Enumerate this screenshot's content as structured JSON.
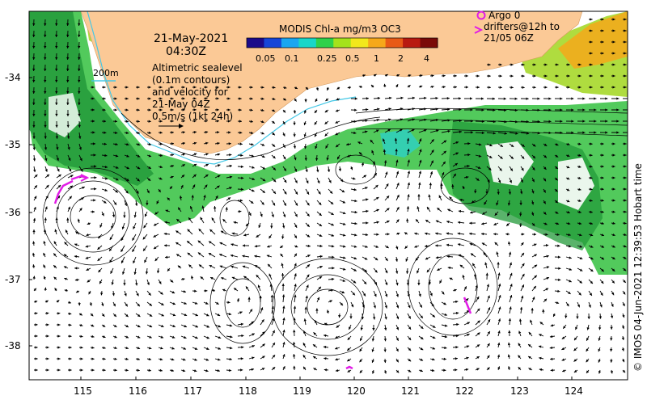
{
  "title": {
    "date": "21-May-2021",
    "time": "04:30Z"
  },
  "colorbar": {
    "label": "MODIS Chl-a mg/m3 OC3",
    "ticks": [
      "0.05",
      "0.1",
      "0.25",
      "0.5",
      "1",
      "2",
      "4"
    ],
    "colors": [
      "#1b0a8a",
      "#1645d8",
      "#1aa6f0",
      "#18d6c8",
      "#2ed14a",
      "#a4e21b",
      "#f2e81c",
      "#f6a81a",
      "#e85a16",
      "#b81a10",
      "#7a0a08"
    ]
  },
  "scale_label": "200m",
  "legend": {
    "lines": [
      "Altimetric sealevel",
      "(0.1m contours)",
      "and velocity for",
      "21-May 04Z",
      "0.5m/s (1kt 24h)"
    ]
  },
  "argo": {
    "line1": "Argo 0",
    "line2": "drifters@12h to",
    "line3": "21/05 06Z"
  },
  "axes": {
    "y_ticks": [
      "-34",
      "-35",
      "-36",
      "-37",
      "-38"
    ],
    "x_ticks": [
      "115",
      "116",
      "117",
      "118",
      "119",
      "120",
      "121",
      "122",
      "123",
      "124"
    ]
  },
  "credit": "© IMOS 04-Jun-2021 12:39:53 Hobart time",
  "colors": {
    "land": "#fbc996",
    "coast_cyan": "#44c8e6",
    "drifter": "#e11ce6",
    "chl_green": "#3fc44a",
    "chl_dark_green": "#239a3a",
    "chl_yellow_green": "#a6d82a",
    "chl_cyan": "#2fd0c0"
  }
}
